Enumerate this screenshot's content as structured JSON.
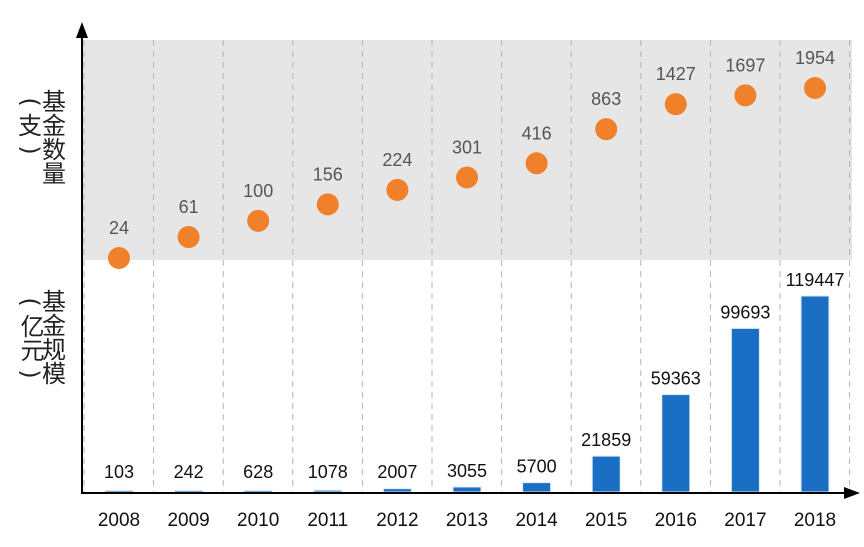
{
  "colors": {
    "background": "#ffffff",
    "top_band": "#e6e6e6",
    "gridline": "#b5b5b5",
    "axis": "#000000",
    "dot": "#f0802a",
    "bar": "#1a6fc4",
    "count_label": "#555555",
    "size_label": "#111111"
  },
  "labels": {
    "count_axis": {
      "open": "(",
      "chars": [
        "基",
        "金",
        "数",
        "量"
      ],
      "unit": "支",
      "close": ")"
    },
    "size_axis": {
      "open": "(",
      "chars": [
        "基",
        "金",
        "规",
        "模"
      ],
      "unit": "亿元",
      "close": ")"
    }
  },
  "chart_data": {
    "type": "scatter+bar",
    "categories": [
      "2008",
      "2009",
      "2010",
      "2011",
      "2012",
      "2013",
      "2014",
      "2015",
      "2016",
      "2017",
      "2018"
    ],
    "series": [
      {
        "kind": "scatter",
        "values": [
          24,
          61,
          100,
          156,
          224,
          301,
          416,
          863,
          1427,
          1697,
          1954
        ]
      },
      {
        "kind": "bar",
        "values": [
          103,
          242,
          628,
          1078,
          2007,
          3055,
          5700,
          21859,
          59363,
          99693,
          119447
        ]
      }
    ],
    "grid": "vertical dashed",
    "legend": "none"
  }
}
